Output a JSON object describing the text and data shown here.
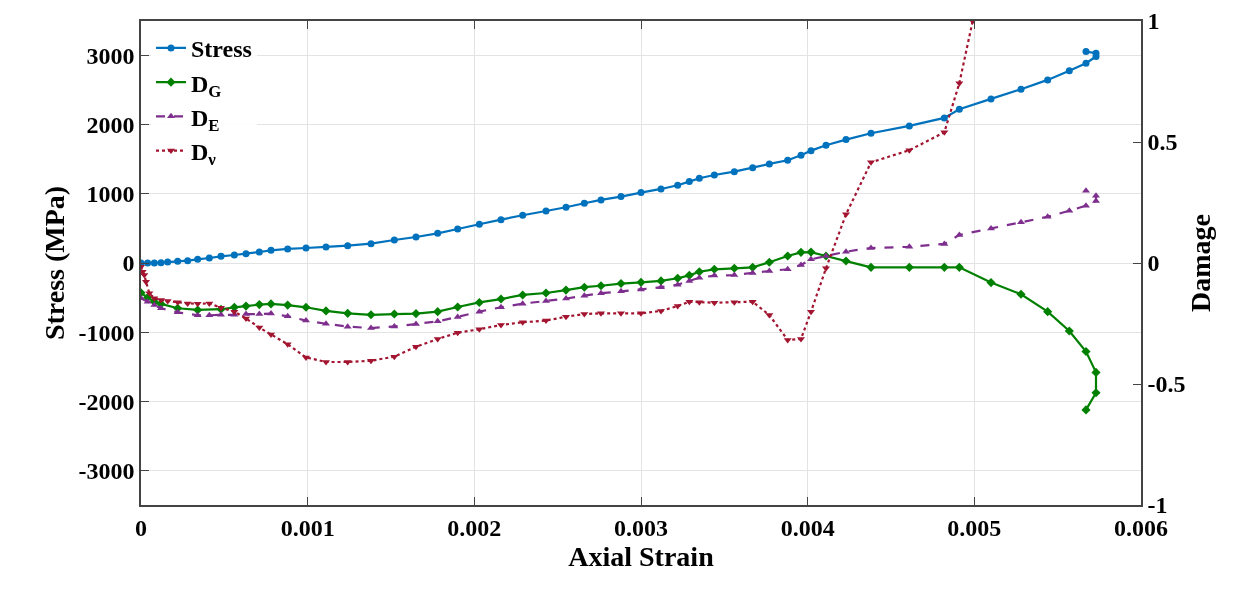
{
  "chart_data": {
    "type": "line",
    "xlabel": "Axial Strain",
    "ylabel": "Stress (MPa)",
    "y2label": "Damage",
    "xlim": [
      0,
      0.006
    ],
    "xticks": [
      0,
      0.001,
      0.002,
      0.003,
      0.004,
      0.005,
      0.006
    ],
    "ylim": [
      -3500,
      3500
    ],
    "yticks": [
      -3000,
      -2000,
      -1000,
      0,
      1000,
      2000,
      3000
    ],
    "y2lim": [
      -1,
      1
    ],
    "y2ticks": [
      -1,
      -0.5,
      0,
      0.5,
      1
    ],
    "grid": true,
    "legend": "top left",
    "series": [
      {
        "name": "Stress",
        "color": "#0072bd",
        "marker": "circle",
        "line_style": "solid",
        "x": [
          0,
          4e-05,
          8e-05,
          0.00012,
          0.00016,
          0.00022,
          0.00028,
          0.00034,
          0.00041,
          0.00048,
          0.00056,
          0.00063,
          0.00071,
          0.00078,
          0.00088,
          0.00099,
          0.00111,
          0.00124,
          0.00138,
          0.00152,
          0.00165,
          0.00178,
          0.0019,
          0.00203,
          0.00216,
          0.00229,
          0.00243,
          0.00255,
          0.00266,
          0.00276,
          0.00288,
          0.003,
          0.00312,
          0.00322,
          0.00329,
          0.00335,
          0.00344,
          0.00356,
          0.00367,
          0.00377,
          0.00388,
          0.00396,
          0.00402,
          0.00411,
          0.00423,
          0.00438,
          0.00461,
          0.00482,
          0.00491,
          0.0051,
          0.00528,
          0.00544,
          0.00557,
          0.00567,
          0.00573,
          0.00573,
          0.00567
        ],
        "values": [
          0,
          0,
          0,
          5,
          14,
          24,
          34,
          53,
          72,
          96,
          116,
          135,
          159,
          183,
          203,
          217,
          232,
          251,
          280,
          333,
          376,
          429,
          492,
          560,
          627,
          690,
          752,
          806,
          864,
          912,
          960,
          1018,
          1071,
          1124,
          1177,
          1225,
          1273,
          1321,
          1379,
          1433,
          1486,
          1558,
          1625,
          1703,
          1785,
          1877,
          1983,
          2098,
          2224,
          2373,
          2513,
          2648,
          2779,
          2890,
          2986,
          3035,
          3058
        ]
      },
      {
        "name": "D$_{G}$",
        "axis": "y2",
        "color": "#008000",
        "marker": "diamond",
        "line_style": "solid",
        "x": [
          0,
          4e-05,
          8e-05,
          0.00012,
          0.00022,
          0.00034,
          0.00048,
          0.00056,
          0.00063,
          0.00071,
          0.00078,
          0.00088,
          0.00099,
          0.00111,
          0.00124,
          0.00138,
          0.00152,
          0.00165,
          0.00178,
          0.0019,
          0.00203,
          0.00216,
          0.00229,
          0.00243,
          0.00255,
          0.00266,
          0.00276,
          0.00288,
          0.003,
          0.00312,
          0.00322,
          0.00329,
          0.00335,
          0.00344,
          0.00356,
          0.00367,
          0.00377,
          0.00388,
          0.00396,
          0.00402,
          0.00411,
          0.00423,
          0.00438,
          0.00461,
          0.00482,
          0.00491,
          0.0051,
          0.00528,
          0.00544,
          0.00557,
          0.00567,
          0.00573,
          0.00573,
          0.00567
        ],
        "values": [
          -0.123,
          -0.143,
          -0.16,
          -0.169,
          -0.187,
          -0.194,
          -0.191,
          -0.183,
          -0.178,
          -0.172,
          -0.169,
          -0.174,
          -0.183,
          -0.198,
          -0.208,
          -0.214,
          -0.211,
          -0.209,
          -0.201,
          -0.182,
          -0.163,
          -0.149,
          -0.132,
          -0.124,
          -0.112,
          -0.1,
          -0.094,
          -0.085,
          -0.08,
          -0.074,
          -0.063,
          -0.051,
          -0.036,
          -0.026,
          -0.022,
          -0.018,
          0.003,
          0.029,
          0.044,
          0.045,
          0.029,
          0.008,
          -0.018,
          -0.018,
          -0.018,
          -0.018,
          -0.081,
          -0.129,
          -0.201,
          -0.281,
          -0.366,
          -0.452,
          -0.536,
          -0.607
        ]
      },
      {
        "name": "D$_{E}$",
        "axis": "y2",
        "color": "#7e2f8e",
        "marker": "triangle",
        "line_style": "dashed",
        "x": [
          0,
          4e-05,
          8e-05,
          0.00012,
          0.00022,
          0.00034,
          0.00041,
          0.00048,
          0.00056,
          0.00063,
          0.00071,
          0.00078,
          0.00088,
          0.00099,
          0.00111,
          0.00124,
          0.00138,
          0.00152,
          0.00165,
          0.00178,
          0.0019,
          0.00203,
          0.00216,
          0.00229,
          0.00243,
          0.00255,
          0.00266,
          0.00276,
          0.00288,
          0.003,
          0.00312,
          0.00322,
          0.00329,
          0.00335,
          0.00344,
          0.00356,
          0.00367,
          0.00377,
          0.00388,
          0.00396,
          0.00402,
          0.00411,
          0.00423,
          0.00438,
          0.00461,
          0.00482,
          0.00491,
          0.0051,
          0.00528,
          0.00544,
          0.00557,
          0.00567,
          0.00573,
          0.00573,
          0.00567
        ],
        "values": [
          -0.146,
          -0.16,
          -0.174,
          -0.187,
          -0.204,
          -0.216,
          -0.216,
          -0.214,
          -0.214,
          -0.211,
          -0.211,
          -0.209,
          -0.22,
          -0.238,
          -0.251,
          -0.263,
          -0.269,
          -0.262,
          -0.252,
          -0.241,
          -0.223,
          -0.201,
          -0.183,
          -0.168,
          -0.157,
          -0.147,
          -0.135,
          -0.125,
          -0.117,
          -0.109,
          -0.1,
          -0.09,
          -0.074,
          -0.061,
          -0.052,
          -0.05,
          -0.041,
          -0.033,
          -0.026,
          -0.008,
          0.015,
          0.029,
          0.047,
          0.062,
          0.067,
          0.079,
          0.116,
          0.143,
          0.168,
          0.191,
          0.216,
          0.237,
          0.256,
          0.278,
          0.299
        ]
      },
      {
        "name": "D$_{ν}$",
        "axis": "y2",
        "color": "#a2142f",
        "marker": "triangle-down",
        "line_style": "dotted",
        "x": [
          0,
          1e-05,
          2e-05,
          3e-05,
          5e-05,
          8e-05,
          0.00012,
          0.00016,
          0.00022,
          0.00028,
          0.00034,
          0.00041,
          0.00048,
          0.00056,
          0.00063,
          0.00071,
          0.00078,
          0.00088,
          0.00099,
          0.00111,
          0.00124,
          0.00138,
          0.00152,
          0.00165,
          0.00178,
          0.0019,
          0.00203,
          0.00216,
          0.00229,
          0.00243,
          0.00255,
          0.00266,
          0.00276,
          0.00288,
          0.003,
          0.00312,
          0.00322,
          0.00329,
          0.00335,
          0.00344,
          0.00356,
          0.00367,
          0.00377,
          0.00388,
          0.00396,
          0.00402,
          0.00411,
          0.00423,
          0.00438,
          0.00461,
          0.00482,
          0.00491,
          0.00499
        ],
        "values": [
          -0.015,
          -0.036,
          -0.05,
          -0.077,
          -0.125,
          -0.146,
          -0.153,
          -0.157,
          -0.162,
          -0.167,
          -0.168,
          -0.167,
          -0.185,
          -0.201,
          -0.229,
          -0.267,
          -0.295,
          -0.336,
          -0.39,
          -0.409,
          -0.409,
          -0.404,
          -0.387,
          -0.346,
          -0.314,
          -0.288,
          -0.274,
          -0.256,
          -0.245,
          -0.238,
          -0.222,
          -0.211,
          -0.208,
          -0.208,
          -0.208,
          -0.198,
          -0.178,
          -0.16,
          -0.162,
          -0.164,
          -0.162,
          -0.16,
          -0.215,
          -0.318,
          -0.314,
          -0.201,
          -0.022,
          0.201,
          0.416,
          0.466,
          0.54,
          0.743,
          1.0
        ]
      }
    ]
  }
}
